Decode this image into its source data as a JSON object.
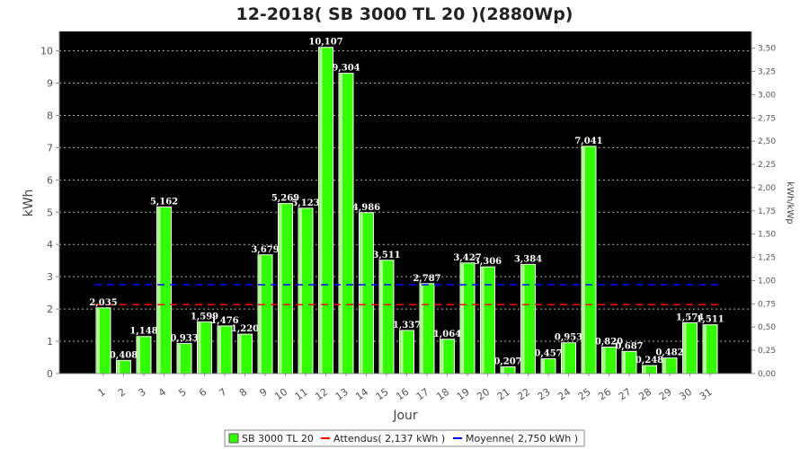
{
  "chart_data": {
    "type": "bar",
    "title": "12-2018( SB 3000 TL 20 )(2880Wp)",
    "xlabel": "Jour",
    "ylabel": "kWh",
    "ylabel_right": "kWh/kWp",
    "categories": [
      "1",
      "2",
      "3",
      "4",
      "5",
      "6",
      "7",
      "8",
      "9",
      "10",
      "11",
      "12",
      "13",
      "14",
      "15",
      "16",
      "17",
      "18",
      "19",
      "20",
      "21",
      "22",
      "23",
      "24",
      "25",
      "26",
      "27",
      "28",
      "29",
      "30",
      "31"
    ],
    "series": [
      {
        "name": "SB 3000 TL 20",
        "color": "#33ff00",
        "values": [
          2.035,
          0.408,
          1.148,
          5.162,
          0.933,
          1.599,
          1.476,
          1.22,
          3.679,
          5.269,
          5.123,
          10.107,
          9.304,
          4.986,
          3.511,
          1.337,
          2.787,
          1.064,
          3.427,
          3.306,
          0.207,
          3.384,
          0.457,
          0.953,
          7.041,
          0.82,
          0.687,
          0.248,
          0.482,
          1.574,
          1.511
        ],
        "value_labels": [
          "2,035",
          "0,408",
          "1,148",
          "5,162",
          "0,933",
          "1,599",
          "1,476",
          "1,220",
          "3,679",
          "5,269",
          "5,123",
          "10,107",
          "9,304",
          "4,986",
          "3,511",
          "1,337",
          "2,787",
          "1,064",
          "3,427",
          "3,306",
          "0,207",
          "3,384",
          "0,457",
          "0,953",
          "7,041",
          "0,820",
          "0,687",
          "0,248",
          "0,482",
          "1,574",
          "1,511"
        ]
      }
    ],
    "reference_lines": [
      {
        "name": "Attendus( 2,137 kWh )",
        "value": 2.137,
        "color": "#ff0000"
      },
      {
        "name": "Moyenne( 2,750 kWh )",
        "value": 2.75,
        "color": "#0000ff"
      }
    ],
    "ylim": [
      0,
      10.6
    ],
    "yticks": [
      0,
      1,
      2,
      3,
      4,
      5,
      6,
      7,
      8,
      9,
      10
    ],
    "ytick_labels": [
      "0",
      "1",
      "2",
      "3",
      "4",
      "5",
      "6",
      "7",
      "8",
      "9",
      "10"
    ],
    "ylim_right": [
      0,
      3.68
    ],
    "yticks_right": [
      0,
      0.25,
      0.5,
      0.75,
      1,
      1.25,
      1.5,
      1.75,
      2,
      2.25,
      2.5,
      2.75,
      3,
      3.25,
      3.5
    ],
    "ytick_labels_right": [
      "0,00",
      "0,25",
      "0,50",
      "0,75",
      "1,00",
      "1,25",
      "1,50",
      "1,75",
      "2,00",
      "2,25",
      "2,50",
      "2,75",
      "3,00",
      "3,25",
      "3,50"
    ],
    "plot_background": "#000000",
    "grid": true,
    "legend_position": "bottom-center"
  }
}
